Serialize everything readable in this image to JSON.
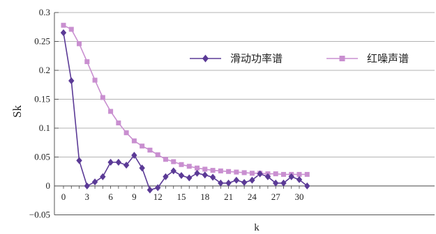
{
  "chart_data": {
    "type": "line",
    "xlabel": "k",
    "ylabel": "Sk",
    "xlim": [
      0,
      31
    ],
    "ylim": [
      -0.05,
      0.3
    ],
    "x_ticks": [
      0,
      3,
      6,
      9,
      12,
      15,
      18,
      21,
      24,
      27,
      30
    ],
    "y_ticks": [
      -0.05,
      0,
      0.05,
      0.1,
      0.15,
      0.2,
      0.25,
      0.3
    ],
    "y_tick_labels": [
      "−0.05",
      "0",
      "0.05",
      "0.1",
      "0.15",
      "0.2",
      "0.25",
      "0.3"
    ],
    "grid": "horizontal",
    "legend_position": "top-right",
    "x": [
      0,
      1,
      2,
      3,
      4,
      5,
      6,
      7,
      8,
      9,
      10,
      11,
      12,
      13,
      14,
      15,
      16,
      17,
      18,
      19,
      20,
      21,
      22,
      23,
      24,
      25,
      26,
      27,
      28,
      29,
      30,
      31
    ],
    "series": [
      {
        "name": "滑动功率谱",
        "color": "#5b3a96",
        "marker": "diamond",
        "values": [
          0.265,
          0.182,
          0.044,
          0.0,
          0.007,
          0.016,
          0.041,
          0.041,
          0.036,
          0.053,
          0.031,
          -0.007,
          -0.003,
          0.016,
          0.026,
          0.018,
          0.014,
          0.022,
          0.019,
          0.015,
          0.005,
          0.005,
          0.01,
          0.006,
          0.01,
          0.021,
          0.016,
          0.005,
          0.005,
          0.016,
          0.011,
          0.0
        ]
      },
      {
        "name": "红噪声谱",
        "color": "#c98fd0",
        "marker": "square",
        "values": [
          0.278,
          0.271,
          0.246,
          0.215,
          0.183,
          0.153,
          0.129,
          0.109,
          0.092,
          0.078,
          0.069,
          0.062,
          0.054,
          0.046,
          0.042,
          0.037,
          0.034,
          0.031,
          0.029,
          0.027,
          0.026,
          0.025,
          0.024,
          0.023,
          0.022,
          0.022,
          0.021,
          0.021,
          0.02,
          0.02,
          0.02,
          0.02
        ]
      }
    ]
  }
}
